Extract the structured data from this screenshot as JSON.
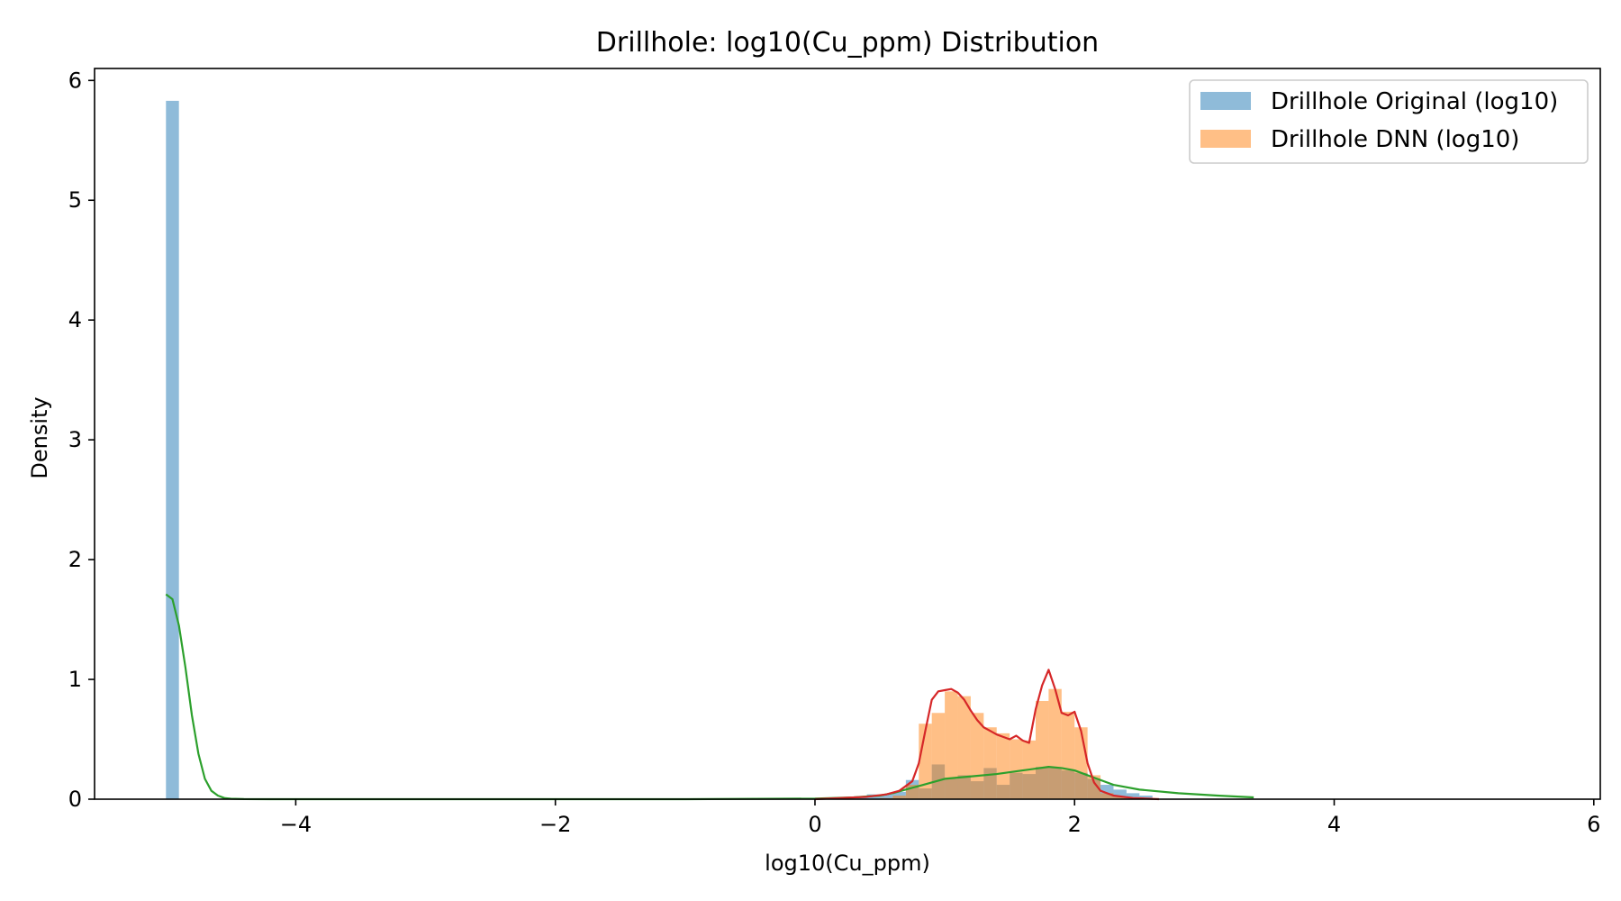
{
  "chart_data": {
    "type": "histogram",
    "title": "Drillhole: log10(Cu_ppm) Distribution",
    "xlabel": "log10(Cu_ppm)",
    "ylabel": "Density",
    "xlim": [
      -5.55,
      6.05
    ],
    "ylim": [
      0,
      6.1
    ],
    "xticks": [
      -4,
      -2,
      0,
      2,
      4,
      6
    ],
    "yticks": [
      0,
      1,
      2,
      3,
      4,
      5,
      6
    ],
    "xtick_labels": [
      "−4",
      "−2",
      "0",
      "2",
      "4",
      "6"
    ],
    "ytick_labels": [
      "0",
      "1",
      "2",
      "3",
      "4",
      "5",
      "6"
    ],
    "grid": false,
    "legend_position": "top-right",
    "colors": {
      "original": "#1f77b4",
      "dnn": "#ff7f0e",
      "kde_original": "#2ca02c",
      "kde_dnn": "#d62728",
      "axes": "#000000",
      "legend_border": "#cccccc"
    },
    "legend": [
      {
        "label": "Drillhole Original (log10)",
        "color": "#1f77b4"
      },
      {
        "label": "Drillhole DNN (log10)",
        "color": "#ff7f0e"
      }
    ],
    "series": [
      {
        "name": "Drillhole Original (log10)",
        "kind": "histogram",
        "color": "#1f77b4",
        "opacity": 0.5,
        "bins": [
          {
            "x0": -5.0,
            "x1": -4.9,
            "density": 5.83
          },
          {
            "x0": 0.1,
            "x1": 0.2,
            "density": 0.01
          },
          {
            "x0": 0.2,
            "x1": 0.3,
            "density": 0.01
          },
          {
            "x0": 0.3,
            "x1": 0.4,
            "density": 0.02
          },
          {
            "x0": 0.4,
            "x1": 0.5,
            "density": 0.04
          },
          {
            "x0": 0.5,
            "x1": 0.6,
            "density": 0.04
          },
          {
            "x0": 0.6,
            "x1": 0.7,
            "density": 0.06
          },
          {
            "x0": 0.7,
            "x1": 0.8,
            "density": 0.16
          },
          {
            "x0": 0.8,
            "x1": 0.9,
            "density": 0.09
          },
          {
            "x0": 0.9,
            "x1": 1.0,
            "density": 0.29
          },
          {
            "x0": 1.0,
            "x1": 1.1,
            "density": 0.17
          },
          {
            "x0": 1.1,
            "x1": 1.2,
            "density": 0.2
          },
          {
            "x0": 1.2,
            "x1": 1.3,
            "density": 0.15
          },
          {
            "x0": 1.3,
            "x1": 1.4,
            "density": 0.26
          },
          {
            "x0": 1.4,
            "x1": 1.5,
            "density": 0.12
          },
          {
            "x0": 1.5,
            "x1": 1.6,
            "density": 0.22
          },
          {
            "x0": 1.6,
            "x1": 1.7,
            "density": 0.21
          },
          {
            "x0": 1.7,
            "x1": 1.8,
            "density": 0.27
          },
          {
            "x0": 1.8,
            "x1": 1.9,
            "density": 0.26
          },
          {
            "x0": 1.9,
            "x1": 2.0,
            "density": 0.24
          },
          {
            "x0": 2.0,
            "x1": 2.1,
            "density": 0.22
          },
          {
            "x0": 2.1,
            "x1": 2.2,
            "density": 0.17
          },
          {
            "x0": 2.2,
            "x1": 2.3,
            "density": 0.12
          },
          {
            "x0": 2.3,
            "x1": 2.4,
            "density": 0.08
          },
          {
            "x0": 2.4,
            "x1": 2.5,
            "density": 0.05
          },
          {
            "x0": 2.5,
            "x1": 2.6,
            "density": 0.03
          }
        ]
      },
      {
        "name": "Drillhole DNN (log10)",
        "kind": "histogram",
        "color": "#ff7f0e",
        "opacity": 0.5,
        "bins": [
          {
            "x0": 0.5,
            "x1": 0.6,
            "density": 0.01
          },
          {
            "x0": 0.6,
            "x1": 0.7,
            "density": 0.03
          },
          {
            "x0": 0.7,
            "x1": 0.8,
            "density": 0.12
          },
          {
            "x0": 0.8,
            "x1": 0.9,
            "density": 0.63
          },
          {
            "x0": 0.9,
            "x1": 1.0,
            "density": 0.72
          },
          {
            "x0": 1.0,
            "x1": 1.1,
            "density": 0.9
          },
          {
            "x0": 1.1,
            "x1": 1.2,
            "density": 0.86
          },
          {
            "x0": 1.2,
            "x1": 1.3,
            "density": 0.72
          },
          {
            "x0": 1.3,
            "x1": 1.4,
            "density": 0.6
          },
          {
            "x0": 1.4,
            "x1": 1.5,
            "density": 0.55
          },
          {
            "x0": 1.5,
            "x1": 1.6,
            "density": 0.5
          },
          {
            "x0": 1.6,
            "x1": 1.7,
            "density": 0.49
          },
          {
            "x0": 1.7,
            "x1": 1.8,
            "density": 0.82
          },
          {
            "x0": 1.8,
            "x1": 1.9,
            "density": 0.92
          },
          {
            "x0": 1.9,
            "x1": 2.0,
            "density": 0.73
          },
          {
            "x0": 2.0,
            "x1": 2.1,
            "density": 0.6
          },
          {
            "x0": 2.1,
            "x1": 2.2,
            "density": 0.2
          },
          {
            "x0": 2.2,
            "x1": 2.3,
            "density": 0.05
          },
          {
            "x0": 2.3,
            "x1": 2.4,
            "density": 0.02
          }
        ]
      },
      {
        "kind": "kde",
        "color": "#2ca02c",
        "x": [
          -5.0,
          -4.95,
          -4.9,
          -4.85,
          -4.8,
          -4.75,
          -4.7,
          -4.65,
          -4.6,
          -4.55,
          -4.5,
          -4.4,
          -4.2,
          -3.0,
          -1.0,
          0.0,
          0.3,
          0.5,
          0.6,
          0.7,
          0.8,
          0.9,
          1.0,
          1.2,
          1.4,
          1.6,
          1.8,
          1.9,
          2.0,
          2.1,
          2.2,
          2.3,
          2.5,
          2.8,
          3.1,
          3.38
        ],
        "y": [
          1.71,
          1.67,
          1.45,
          1.1,
          0.7,
          0.38,
          0.17,
          0.07,
          0.03,
          0.01,
          0.004,
          0.001,
          0.0,
          0.0,
          0.0,
          0.005,
          0.015,
          0.03,
          0.05,
          0.08,
          0.11,
          0.14,
          0.17,
          0.19,
          0.21,
          0.24,
          0.27,
          0.26,
          0.24,
          0.2,
          0.16,
          0.12,
          0.08,
          0.05,
          0.03,
          0.015
        ]
      },
      {
        "kind": "kde",
        "color": "#d62728",
        "x": [
          0.0,
          0.2,
          0.4,
          0.55,
          0.65,
          0.75,
          0.8,
          0.85,
          0.9,
          0.95,
          1.0,
          1.05,
          1.1,
          1.15,
          1.2,
          1.25,
          1.3,
          1.35,
          1.4,
          1.45,
          1.5,
          1.55,
          1.6,
          1.65,
          1.7,
          1.75,
          1.8,
          1.85,
          1.9,
          1.95,
          2.0,
          2.05,
          2.1,
          2.15,
          2.2,
          2.3,
          2.45,
          2.65
        ],
        "y": [
          0.0,
          0.01,
          0.02,
          0.04,
          0.07,
          0.15,
          0.3,
          0.57,
          0.83,
          0.9,
          0.91,
          0.92,
          0.89,
          0.83,
          0.74,
          0.66,
          0.6,
          0.57,
          0.54,
          0.52,
          0.5,
          0.53,
          0.49,
          0.47,
          0.75,
          0.95,
          1.08,
          0.92,
          0.72,
          0.7,
          0.73,
          0.57,
          0.3,
          0.14,
          0.07,
          0.03,
          0.01,
          0.0
        ]
      }
    ]
  }
}
